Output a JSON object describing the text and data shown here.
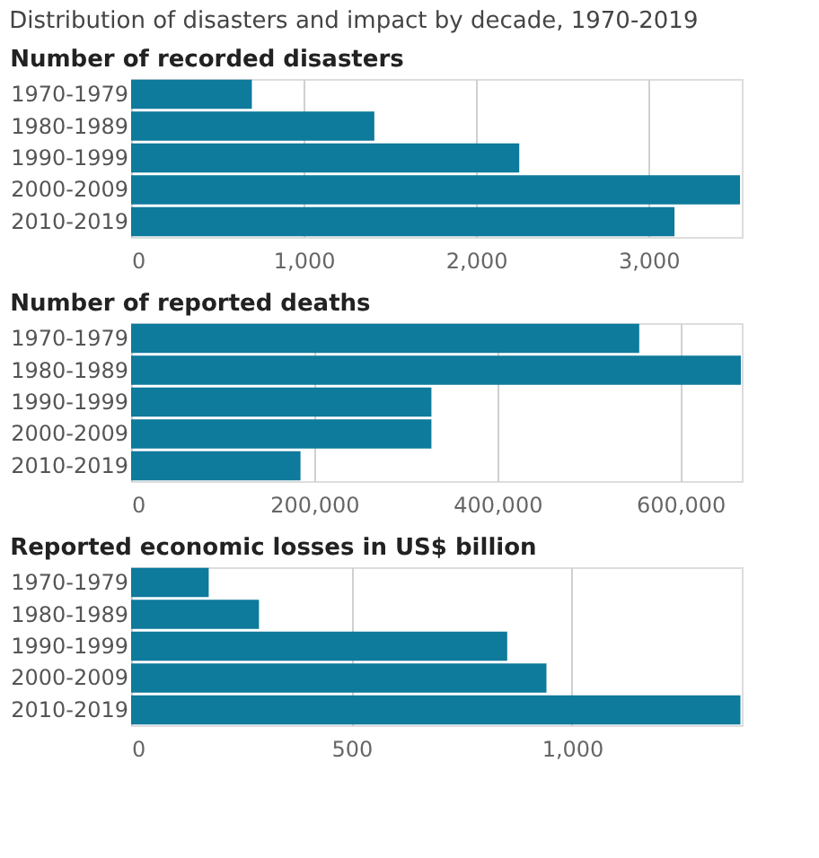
{
  "chart_data": [
    {
      "type": "bar",
      "orientation": "horizontal",
      "title": "Distribution of disasters and impact by decade, 1970-2019",
      "subtitle": "Number of recorded disasters",
      "categories": [
        "1970-1979",
        "1980-1989",
        "1990-1999",
        "2000-2009",
        "2010-2019"
      ],
      "values": [
        700,
        1410,
        2250,
        3530,
        3150
      ],
      "color": "#0e7a9c",
      "xlim": [
        0,
        3540
      ],
      "xticks": [
        0,
        {
          "value": 1000,
          "label": "1,000"
        },
        {
          "value": 2000,
          "label": "2,000"
        },
        {
          "value": 3000,
          "label": "3,000"
        }
      ],
      "grid": "x"
    },
    {
      "type": "bar",
      "orientation": "horizontal",
      "title": "Number of reported deaths",
      "categories": [
        "1970-1979",
        "1980-1989",
        "1990-1999",
        "2000-2009",
        "2010-2019"
      ],
      "values": [
        555000,
        666000,
        328000,
        328000,
        185000
      ],
      "color": "#0e7a9c",
      "xlim": [
        0,
        667000
      ],
      "xticks": [
        0,
        {
          "value": 200000,
          "label": "200,000"
        },
        {
          "value": 400000,
          "label": "400,000"
        },
        {
          "value": 600000,
          "label": "600,000"
        }
      ],
      "grid": "x"
    },
    {
      "type": "bar",
      "orientation": "horizontal",
      "title": "Reported economic losses in US$ billion",
      "categories": [
        "1970-1979",
        "1980-1989",
        "1990-1999",
        "2000-2009",
        "2010-2019"
      ],
      "values": [
        176,
        290,
        853,
        942,
        1382
      ],
      "color": "#0e7a9c",
      "xlim": [
        0,
        1385
      ],
      "xticks": [
        0,
        500,
        {
          "value": 1000,
          "label": "1,000"
        }
      ],
      "grid": "x"
    }
  ]
}
